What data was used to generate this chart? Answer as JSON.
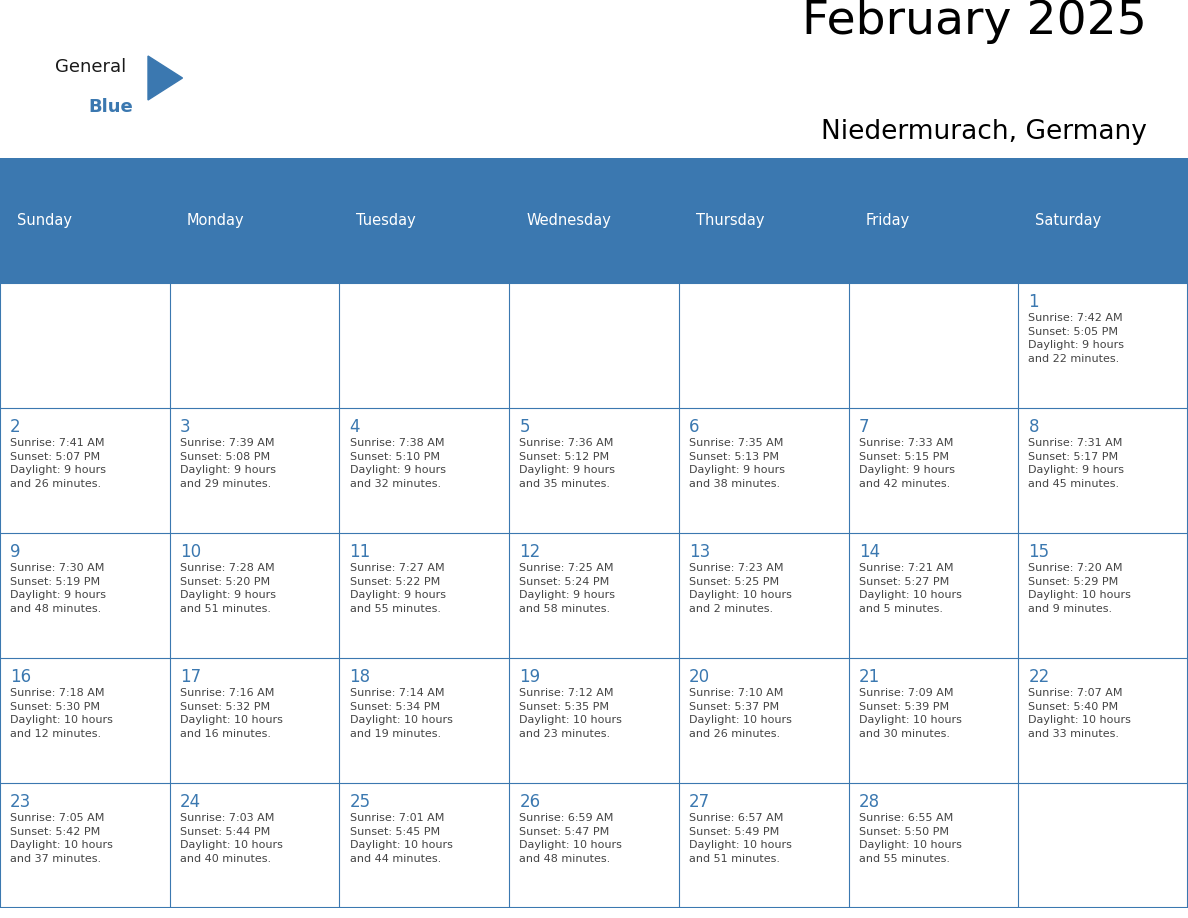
{
  "title": "February 2025",
  "subtitle": "Niedermurach, Germany",
  "header_color": "#3b78b0",
  "header_text_color": "#ffffff",
  "cell_bg_color": "#ffffff",
  "border_color": "#3b78b0",
  "row_line_color": "#3b78b0",
  "day_number_color": "#3b78b0",
  "text_color": "#444444",
  "days_of_week": [
    "Sunday",
    "Monday",
    "Tuesday",
    "Wednesday",
    "Thursday",
    "Friday",
    "Saturday"
  ],
  "weeks": [
    [
      {
        "day": null,
        "info": null
      },
      {
        "day": null,
        "info": null
      },
      {
        "day": null,
        "info": null
      },
      {
        "day": null,
        "info": null
      },
      {
        "day": null,
        "info": null
      },
      {
        "day": null,
        "info": null
      },
      {
        "day": 1,
        "info": "Sunrise: 7:42 AM\nSunset: 5:05 PM\nDaylight: 9 hours\nand 22 minutes."
      }
    ],
    [
      {
        "day": 2,
        "info": "Sunrise: 7:41 AM\nSunset: 5:07 PM\nDaylight: 9 hours\nand 26 minutes."
      },
      {
        "day": 3,
        "info": "Sunrise: 7:39 AM\nSunset: 5:08 PM\nDaylight: 9 hours\nand 29 minutes."
      },
      {
        "day": 4,
        "info": "Sunrise: 7:38 AM\nSunset: 5:10 PM\nDaylight: 9 hours\nand 32 minutes."
      },
      {
        "day": 5,
        "info": "Sunrise: 7:36 AM\nSunset: 5:12 PM\nDaylight: 9 hours\nand 35 minutes."
      },
      {
        "day": 6,
        "info": "Sunrise: 7:35 AM\nSunset: 5:13 PM\nDaylight: 9 hours\nand 38 minutes."
      },
      {
        "day": 7,
        "info": "Sunrise: 7:33 AM\nSunset: 5:15 PM\nDaylight: 9 hours\nand 42 minutes."
      },
      {
        "day": 8,
        "info": "Sunrise: 7:31 AM\nSunset: 5:17 PM\nDaylight: 9 hours\nand 45 minutes."
      }
    ],
    [
      {
        "day": 9,
        "info": "Sunrise: 7:30 AM\nSunset: 5:19 PM\nDaylight: 9 hours\nand 48 minutes."
      },
      {
        "day": 10,
        "info": "Sunrise: 7:28 AM\nSunset: 5:20 PM\nDaylight: 9 hours\nand 51 minutes."
      },
      {
        "day": 11,
        "info": "Sunrise: 7:27 AM\nSunset: 5:22 PM\nDaylight: 9 hours\nand 55 minutes."
      },
      {
        "day": 12,
        "info": "Sunrise: 7:25 AM\nSunset: 5:24 PM\nDaylight: 9 hours\nand 58 minutes."
      },
      {
        "day": 13,
        "info": "Sunrise: 7:23 AM\nSunset: 5:25 PM\nDaylight: 10 hours\nand 2 minutes."
      },
      {
        "day": 14,
        "info": "Sunrise: 7:21 AM\nSunset: 5:27 PM\nDaylight: 10 hours\nand 5 minutes."
      },
      {
        "day": 15,
        "info": "Sunrise: 7:20 AM\nSunset: 5:29 PM\nDaylight: 10 hours\nand 9 minutes."
      }
    ],
    [
      {
        "day": 16,
        "info": "Sunrise: 7:18 AM\nSunset: 5:30 PM\nDaylight: 10 hours\nand 12 minutes."
      },
      {
        "day": 17,
        "info": "Sunrise: 7:16 AM\nSunset: 5:32 PM\nDaylight: 10 hours\nand 16 minutes."
      },
      {
        "day": 18,
        "info": "Sunrise: 7:14 AM\nSunset: 5:34 PM\nDaylight: 10 hours\nand 19 minutes."
      },
      {
        "day": 19,
        "info": "Sunrise: 7:12 AM\nSunset: 5:35 PM\nDaylight: 10 hours\nand 23 minutes."
      },
      {
        "day": 20,
        "info": "Sunrise: 7:10 AM\nSunset: 5:37 PM\nDaylight: 10 hours\nand 26 minutes."
      },
      {
        "day": 21,
        "info": "Sunrise: 7:09 AM\nSunset: 5:39 PM\nDaylight: 10 hours\nand 30 minutes."
      },
      {
        "day": 22,
        "info": "Sunrise: 7:07 AM\nSunset: 5:40 PM\nDaylight: 10 hours\nand 33 minutes."
      }
    ],
    [
      {
        "day": 23,
        "info": "Sunrise: 7:05 AM\nSunset: 5:42 PM\nDaylight: 10 hours\nand 37 minutes."
      },
      {
        "day": 24,
        "info": "Sunrise: 7:03 AM\nSunset: 5:44 PM\nDaylight: 10 hours\nand 40 minutes."
      },
      {
        "day": 25,
        "info": "Sunrise: 7:01 AM\nSunset: 5:45 PM\nDaylight: 10 hours\nand 44 minutes."
      },
      {
        "day": 26,
        "info": "Sunrise: 6:59 AM\nSunset: 5:47 PM\nDaylight: 10 hours\nand 48 minutes."
      },
      {
        "day": 27,
        "info": "Sunrise: 6:57 AM\nSunset: 5:49 PM\nDaylight: 10 hours\nand 51 minutes."
      },
      {
        "day": 28,
        "info": "Sunrise: 6:55 AM\nSunset: 5:50 PM\nDaylight: 10 hours\nand 55 minutes."
      },
      {
        "day": null,
        "info": null
      }
    ]
  ],
  "logo_text_general": "General",
  "logo_text_blue": "Blue",
  "logo_color_general": "#1a1a1a",
  "logo_color_blue": "#3b78b0",
  "logo_triangle_color": "#3b78b0",
  "fig_width": 11.88,
  "fig_height": 9.18,
  "dpi": 100
}
